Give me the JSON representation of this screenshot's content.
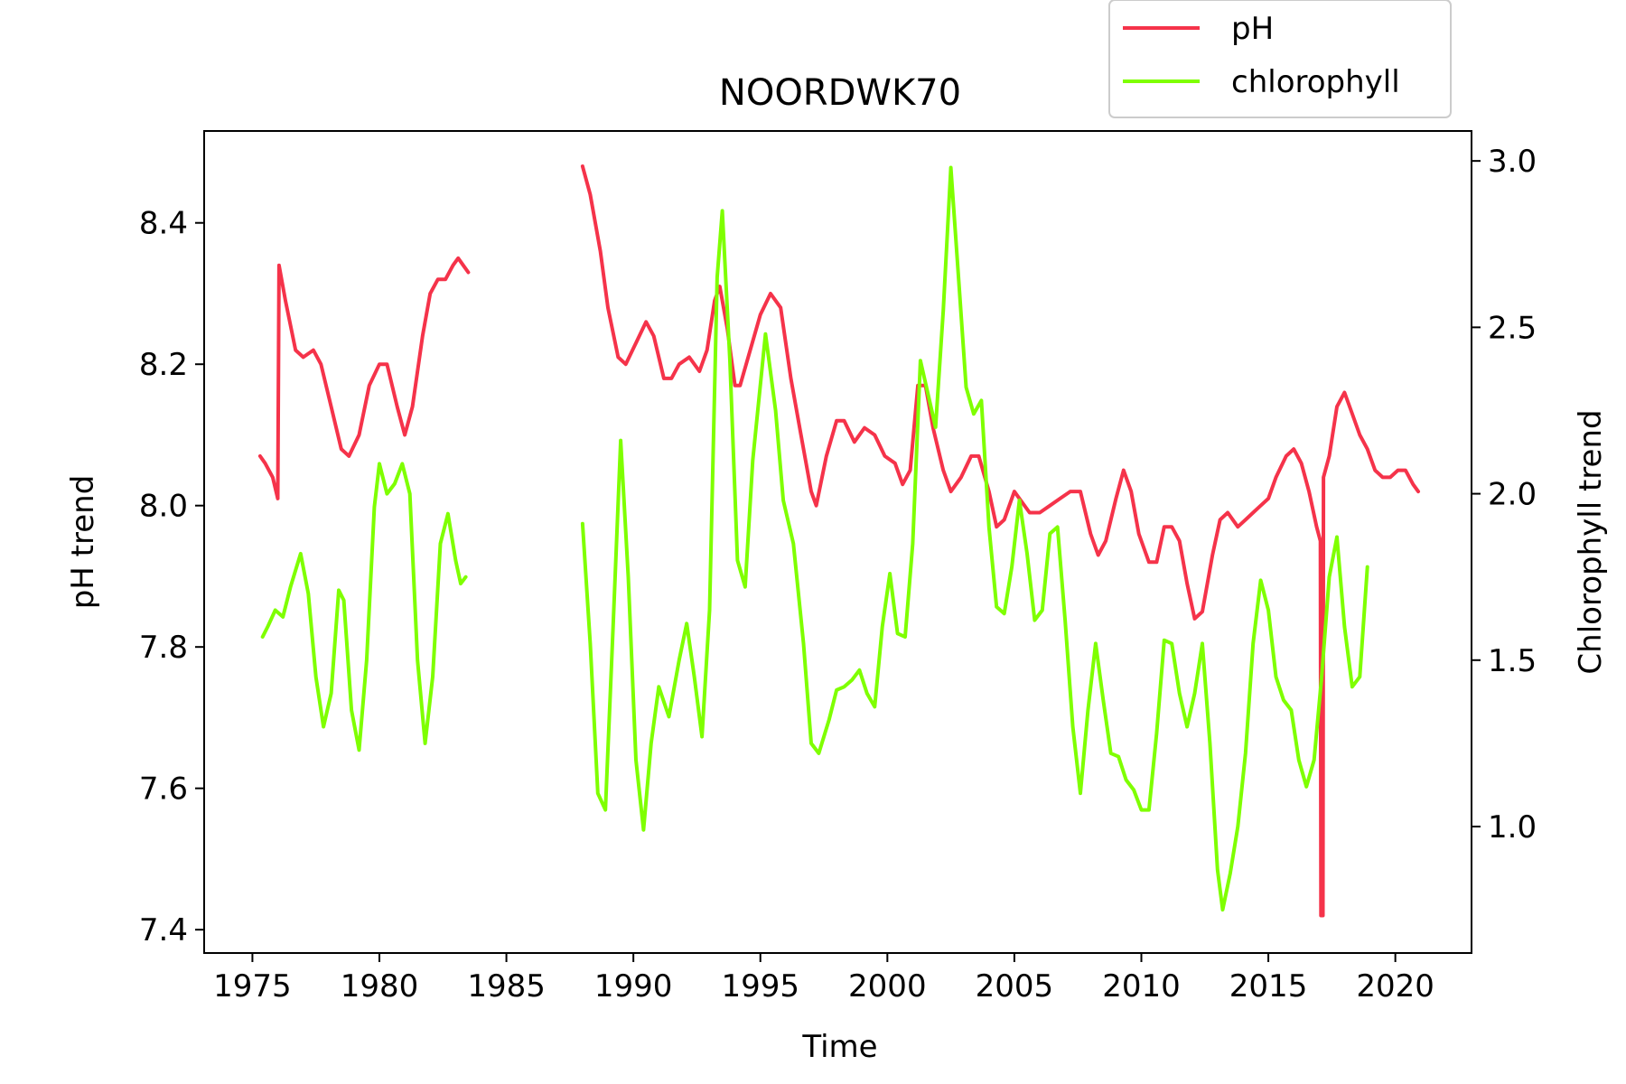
{
  "chart_data": {
    "type": "line",
    "title": "NOORDWK70",
    "xlabel": "Time",
    "ylabel": "pH trend",
    "y2label": "Chlorophyll trend",
    "xlim": [
      1973.1,
      2023.0
    ],
    "ylim": [
      7.367,
      8.53
    ],
    "y2lim": [
      0.62,
      3.09
    ],
    "x_ticks": [
      1975,
      1980,
      1985,
      1990,
      1995,
      2000,
      2005,
      2010,
      2015,
      2020
    ],
    "y_ticks": [
      7.4,
      7.6,
      7.8,
      8.0,
      8.2,
      8.4
    ],
    "y2_ticks": [
      1.0,
      1.5,
      2.0,
      2.5,
      3.0
    ],
    "grid": false,
    "legend": "top-right, outside above axes",
    "series": [
      {
        "name": "pH",
        "axis": "left",
        "color": "#f5334a",
        "segments": [
          [
            [
              1975.3,
              8.07
            ],
            [
              1975.5,
              8.06
            ],
            [
              1975.8,
              8.04
            ],
            [
              1976.0,
              8.01
            ],
            [
              1976.05,
              8.34
            ],
            [
              1976.3,
              8.29
            ],
            [
              1976.7,
              8.22
            ],
            [
              1977.0,
              8.21
            ],
            [
              1977.4,
              8.22
            ],
            [
              1977.7,
              8.2
            ],
            [
              1978.1,
              8.14
            ],
            [
              1978.5,
              8.08
            ],
            [
              1978.8,
              8.07
            ],
            [
              1979.2,
              8.1
            ],
            [
              1979.6,
              8.17
            ],
            [
              1980.0,
              8.2
            ],
            [
              1980.3,
              8.2
            ],
            [
              1980.7,
              8.14
            ],
            [
              1981.0,
              8.1
            ],
            [
              1981.3,
              8.14
            ],
            [
              1981.7,
              8.24
            ],
            [
              1982.0,
              8.3
            ],
            [
              1982.3,
              8.32
            ],
            [
              1982.6,
              8.32
            ],
            [
              1982.9,
              8.34
            ],
            [
              1983.1,
              8.35
            ],
            [
              1983.3,
              8.34
            ],
            [
              1983.5,
              8.33
            ]
          ],
          [
            [
              1988.0,
              8.48
            ],
            [
              1988.3,
              8.44
            ],
            [
              1988.7,
              8.36
            ],
            [
              1989.0,
              8.28
            ],
            [
              1989.4,
              8.21
            ],
            [
              1989.7,
              8.2
            ],
            [
              1990.1,
              8.23
            ],
            [
              1990.5,
              8.26
            ],
            [
              1990.8,
              8.24
            ],
            [
              1991.2,
              8.18
            ],
            [
              1991.5,
              8.18
            ],
            [
              1991.8,
              8.2
            ],
            [
              1992.2,
              8.21
            ],
            [
              1992.6,
              8.19
            ],
            [
              1992.9,
              8.22
            ],
            [
              1993.2,
              8.29
            ],
            [
              1993.4,
              8.31
            ],
            [
              1993.7,
              8.25
            ],
            [
              1994.0,
              8.17
            ],
            [
              1994.2,
              8.17
            ],
            [
              1994.6,
              8.22
            ],
            [
              1995.0,
              8.27
            ],
            [
              1995.4,
              8.3
            ],
            [
              1995.8,
              8.28
            ],
            [
              1996.2,
              8.18
            ],
            [
              1996.6,
              8.1
            ],
            [
              1997.0,
              8.02
            ],
            [
              1997.2,
              8.0
            ],
            [
              1997.6,
              8.07
            ],
            [
              1998.0,
              8.12
            ],
            [
              1998.3,
              8.12
            ],
            [
              1998.7,
              8.09
            ],
            [
              1999.1,
              8.11
            ],
            [
              1999.5,
              8.1
            ],
            [
              1999.9,
              8.07
            ],
            [
              2000.3,
              8.06
            ],
            [
              2000.6,
              8.03
            ],
            [
              2000.9,
              8.05
            ],
            [
              2001.2,
              8.17
            ],
            [
              2001.5,
              8.17
            ],
            [
              2001.8,
              8.11
            ],
            [
              2002.2,
              8.05
            ],
            [
              2002.5,
              8.02
            ],
            [
              2002.9,
              8.04
            ],
            [
              2003.3,
              8.07
            ],
            [
              2003.6,
              8.07
            ],
            [
              2004.0,
              8.02
            ],
            [
              2004.3,
              7.97
            ],
            [
              2004.6,
              7.98
            ],
            [
              2005.0,
              8.02
            ],
            [
              2005.2,
              8.01
            ],
            [
              2005.6,
              7.99
            ],
            [
              2006.0,
              7.99
            ],
            [
              2006.4,
              8.0
            ],
            [
              2006.8,
              8.01
            ],
            [
              2007.2,
              8.02
            ],
            [
              2007.6,
              8.02
            ],
            [
              2008.0,
              7.96
            ],
            [
              2008.3,
              7.93
            ],
            [
              2008.6,
              7.95
            ],
            [
              2009.0,
              8.01
            ],
            [
              2009.3,
              8.05
            ],
            [
              2009.6,
              8.02
            ],
            [
              2009.9,
              7.96
            ],
            [
              2010.3,
              7.92
            ],
            [
              2010.6,
              7.92
            ],
            [
              2010.9,
              7.97
            ],
            [
              2011.2,
              7.97
            ],
            [
              2011.5,
              7.95
            ],
            [
              2011.8,
              7.89
            ],
            [
              2012.1,
              7.84
            ],
            [
              2012.4,
              7.85
            ],
            [
              2012.8,
              7.93
            ],
            [
              2013.1,
              7.98
            ],
            [
              2013.4,
              7.99
            ],
            [
              2013.8,
              7.97
            ],
            [
              2014.1,
              7.98
            ],
            [
              2014.4,
              7.99
            ],
            [
              2014.7,
              8.0
            ],
            [
              2015.0,
              8.01
            ],
            [
              2015.3,
              8.04
            ],
            [
              2015.7,
              8.07
            ],
            [
              2016.0,
              8.08
            ],
            [
              2016.3,
              8.06
            ],
            [
              2016.6,
              8.02
            ],
            [
              2016.9,
              7.97
            ],
            [
              2017.05,
              7.95
            ],
            [
              2017.07,
              7.42
            ],
            [
              2017.15,
              7.42
            ],
            [
              2017.17,
              8.04
            ],
            [
              2017.4,
              8.07
            ],
            [
              2017.7,
              8.14
            ],
            [
              2018.0,
              8.16
            ],
            [
              2018.3,
              8.13
            ],
            [
              2018.6,
              8.1
            ],
            [
              2018.9,
              8.08
            ],
            [
              2019.2,
              8.05
            ],
            [
              2019.5,
              8.04
            ],
            [
              2019.8,
              8.04
            ],
            [
              2020.1,
              8.05
            ],
            [
              2020.4,
              8.05
            ],
            [
              2020.7,
              8.03
            ],
            [
              2020.9,
              8.02
            ]
          ]
        ]
      },
      {
        "name": "chlorophyll",
        "axis": "right",
        "color": "#7fff00",
        "segments": [
          [
            [
              1975.4,
              1.57
            ],
            [
              1975.6,
              1.6
            ],
            [
              1975.9,
              1.65
            ],
            [
              1976.2,
              1.63
            ],
            [
              1976.5,
              1.72
            ],
            [
              1976.9,
              1.82
            ],
            [
              1977.2,
              1.7
            ],
            [
              1977.5,
              1.45
            ],
            [
              1977.8,
              1.3
            ],
            [
              1978.1,
              1.4
            ],
            [
              1978.4,
              1.71
            ],
            [
              1978.6,
              1.68
            ],
            [
              1978.9,
              1.35
            ],
            [
              1979.2,
              1.23
            ],
            [
              1979.5,
              1.5
            ],
            [
              1979.8,
              1.96
            ],
            [
              1980.0,
              2.09
            ],
            [
              1980.3,
              2.0
            ],
            [
              1980.6,
              2.03
            ],
            [
              1980.9,
              2.09
            ],
            [
              1981.2,
              2.0
            ],
            [
              1981.5,
              1.5
            ],
            [
              1981.8,
              1.25
            ],
            [
              1982.1,
              1.45
            ],
            [
              1982.4,
              1.85
            ],
            [
              1982.7,
              1.94
            ],
            [
              1983.0,
              1.8
            ],
            [
              1983.2,
              1.73
            ],
            [
              1983.4,
              1.75
            ]
          ],
          [
            [
              1988.0,
              1.91
            ],
            [
              1988.3,
              1.55
            ],
            [
              1988.6,
              1.1
            ],
            [
              1988.9,
              1.05
            ],
            [
              1989.2,
              1.6
            ],
            [
              1989.5,
              2.16
            ],
            [
              1989.8,
              1.75
            ],
            [
              1990.1,
              1.2
            ],
            [
              1990.4,
              0.99
            ],
            [
              1990.7,
              1.25
            ],
            [
              1991.0,
              1.42
            ],
            [
              1991.4,
              1.33
            ],
            [
              1991.8,
              1.5
            ],
            [
              1992.1,
              1.61
            ],
            [
              1992.4,
              1.45
            ],
            [
              1992.7,
              1.27
            ],
            [
              1993.0,
              1.65
            ],
            [
              1993.3,
              2.65
            ],
            [
              1993.5,
              2.85
            ],
            [
              1993.8,
              2.4
            ],
            [
              1994.1,
              1.8
            ],
            [
              1994.4,
              1.72
            ],
            [
              1994.7,
              2.1
            ],
            [
              1995.2,
              2.48
            ],
            [
              1995.6,
              2.25
            ],
            [
              1995.9,
              1.98
            ],
            [
              1996.3,
              1.85
            ],
            [
              1996.7,
              1.55
            ],
            [
              1997.0,
              1.25
            ],
            [
              1997.3,
              1.22
            ],
            [
              1997.7,
              1.32
            ],
            [
              1998.0,
              1.41
            ],
            [
              1998.3,
              1.42
            ],
            [
              1998.6,
              1.44
            ],
            [
              1998.9,
              1.47
            ],
            [
              1999.2,
              1.4
            ],
            [
              1999.5,
              1.36
            ],
            [
              1999.8,
              1.6
            ],
            [
              2000.1,
              1.76
            ],
            [
              2000.4,
              1.58
            ],
            [
              2000.7,
              1.57
            ],
            [
              2001.0,
              1.85
            ],
            [
              2001.3,
              2.4
            ],
            [
              2001.6,
              2.3
            ],
            [
              2001.9,
              2.2
            ],
            [
              2002.2,
              2.55
            ],
            [
              2002.5,
              2.98
            ],
            [
              2002.8,
              2.65
            ],
            [
              2003.1,
              2.32
            ],
            [
              2003.4,
              2.24
            ],
            [
              2003.7,
              2.28
            ],
            [
              2004.0,
              1.9
            ],
            [
              2004.3,
              1.66
            ],
            [
              2004.6,
              1.64
            ],
            [
              2004.9,
              1.78
            ],
            [
              2005.2,
              1.98
            ],
            [
              2005.5,
              1.82
            ],
            [
              2005.8,
              1.62
            ],
            [
              2006.1,
              1.65
            ],
            [
              2006.4,
              1.88
            ],
            [
              2006.7,
              1.9
            ],
            [
              2007.0,
              1.62
            ],
            [
              2007.3,
              1.3
            ],
            [
              2007.6,
              1.1
            ],
            [
              2007.9,
              1.35
            ],
            [
              2008.2,
              1.55
            ],
            [
              2008.5,
              1.38
            ],
            [
              2008.8,
              1.22
            ],
            [
              2009.1,
              1.21
            ],
            [
              2009.4,
              1.14
            ],
            [
              2009.7,
              1.11
            ],
            [
              2010.0,
              1.05
            ],
            [
              2010.3,
              1.05
            ],
            [
              2010.6,
              1.28
            ],
            [
              2010.9,
              1.56
            ],
            [
              2011.2,
              1.55
            ],
            [
              2011.5,
              1.4
            ],
            [
              2011.8,
              1.3
            ],
            [
              2012.1,
              1.4
            ],
            [
              2012.4,
              1.55
            ],
            [
              2012.7,
              1.25
            ],
            [
              2013.0,
              0.87
            ],
            [
              2013.2,
              0.75
            ],
            [
              2013.5,
              0.86
            ],
            [
              2013.8,
              1.0
            ],
            [
              2014.1,
              1.22
            ],
            [
              2014.4,
              1.55
            ],
            [
              2014.7,
              1.74
            ],
            [
              2015.0,
              1.65
            ],
            [
              2015.3,
              1.45
            ],
            [
              2015.6,
              1.38
            ],
            [
              2015.9,
              1.35
            ],
            [
              2016.2,
              1.2
            ],
            [
              2016.5,
              1.12
            ],
            [
              2016.8,
              1.2
            ],
            [
              2017.1,
              1.45
            ],
            [
              2017.4,
              1.75
            ],
            [
              2017.7,
              1.87
            ],
            [
              2018.0,
              1.6
            ],
            [
              2018.3,
              1.42
            ],
            [
              2018.6,
              1.45
            ],
            [
              2018.9,
              1.78
            ]
          ]
        ]
      }
    ]
  }
}
